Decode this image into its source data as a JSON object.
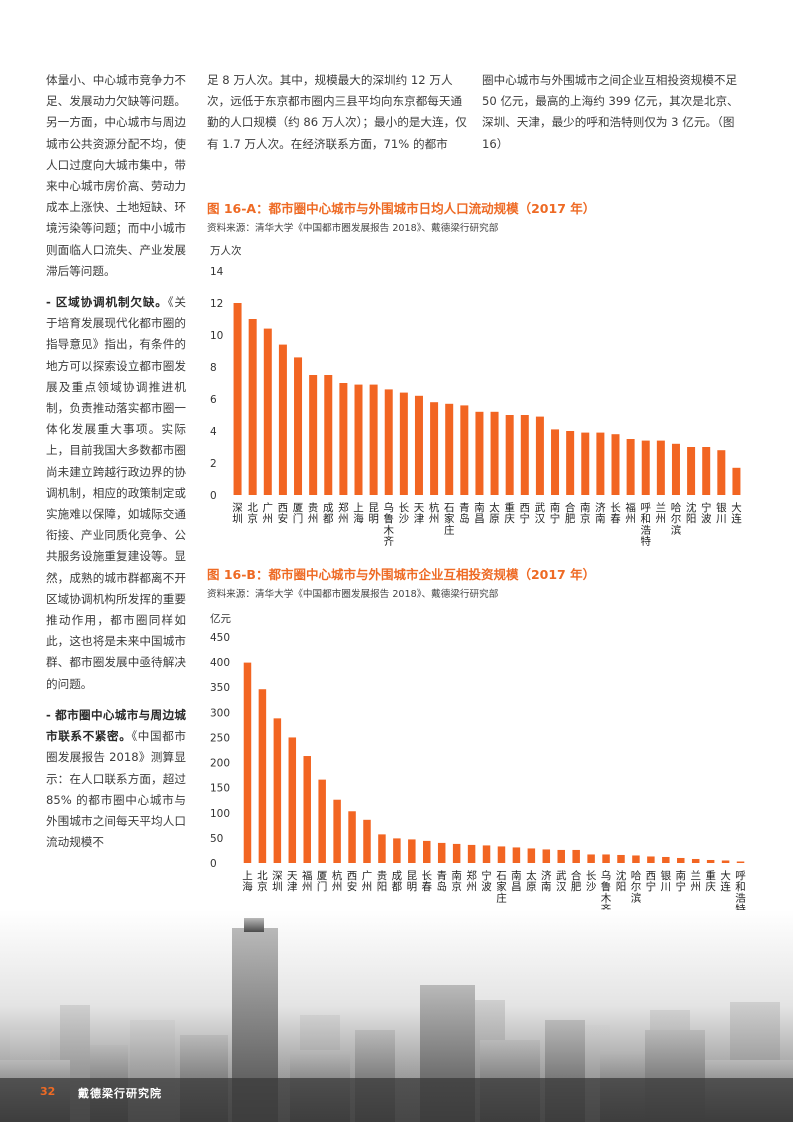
{
  "left_column": {
    "para1": "体量小、中心城市竞争力不足、发展动力欠缺等问题。另一方面，中心城市与周边城市公共资源分配不均，使人口过度向大城市集中，带来中心城市房价高、劳动力成本上涨快、土地短缺、环境污染等问题；而中小城市则面临人口流失、产业发展滞后等问题。",
    "para2_heading": "- 区域协调机制欠缺。",
    "para2_body": "《关于培育发展现代化都市圈的指导意见》指出，有条件的地方可以探索设立都市圈发展及重点领域协调推进机制，负责推动落实都市圈一体化发展重大事项。实际上，目前我国大多数都市圈尚未建立跨越行政边界的协调机制，相应的政策制定或实施难以保障，如城际交通衔接、产业同质化竞争、公共服务设施重复建设等。显然，成熟的城市群都离不开区域协调机构所发挥的重要推动作用，都市圈同样如此，这也将是未来中国城市群、都市圈发展中亟待解决的问题。",
    "para3_heading": "- 都市圈中心城市与周边城市联系不紧密。",
    "para3_body": "《中国都市圈发展报告 2018》测算显示：在人口联系方面，超过 85% 的都市圈中心城市与外围城市之间每天平均人口流动规模不"
  },
  "middle_column": {
    "text": "足 8 万人次。其中，规模最大的深圳约 12 万人次，远低于东京都市圈内三县平均向东京都每天通勤的人口规模（约 86 万人次）；最小的是大连，仅有 1.7 万人次。在经济联系方面，71% 的都市"
  },
  "right_column": {
    "text": "圈中心城市与外围城市之间企业互相投资规模不足 50 亿元，最高的上海约 399 亿元，其次是北京、深圳、天津，最少的呼和浩特则仅为 3 亿元。（图 16）"
  },
  "figure_a": {
    "title": "图 16-A：都市圈中心城市与外围城市日均人口流动规模（2017 年）",
    "source": "资料来源：清华大学《中国都市圈发展报告 2018》、戴德梁行研究部"
  },
  "figure_b": {
    "title": "图 16-B：都市圈中心城市与外围城市企业互相投资规模（2017 年）",
    "source": "资料来源：清华大学《中国都市圈发展报告 2018》、戴德梁行研究部"
  },
  "colors": {
    "bar": "#f26522",
    "accent": "#ee6a24"
  },
  "chart_data": [
    {
      "type": "bar",
      "title": "",
      "xlabel": "",
      "ylabel": "万人次",
      "ylim": [
        0,
        14
      ],
      "yticks": [
        0,
        2,
        4,
        6,
        8,
        10,
        12,
        14
      ],
      "grid": false,
      "categories": [
        "深圳",
        "北京",
        "广州",
        "西安",
        "厦门",
        "贵州",
        "成都",
        "郑州",
        "上海",
        "昆明",
        "乌鲁木齐",
        "长沙",
        "天津",
        "杭州",
        "石家庄",
        "青岛",
        "南昌",
        "太原",
        "重庆",
        "西宁",
        "武汉",
        "南宁",
        "合肥",
        "南京",
        "济南",
        "长春",
        "福州",
        "呼和浩特",
        "兰州",
        "哈尔滨",
        "沈阳",
        "宁波",
        "银川",
        "大连"
      ],
      "values": [
        12.0,
        11.0,
        10.4,
        9.4,
        8.6,
        7.5,
        7.5,
        7.0,
        6.9,
        6.9,
        6.6,
        6.4,
        6.2,
        5.8,
        5.7,
        5.6,
        5.2,
        5.2,
        5.0,
        5.0,
        4.9,
        4.1,
        4.0,
        3.9,
        3.9,
        3.8,
        3.5,
        3.4,
        3.4,
        3.2,
        3.0,
        3.0,
        2.8,
        1.7
      ]
    },
    {
      "type": "bar",
      "title": "",
      "xlabel": "",
      "ylabel": "亿元",
      "ylim": [
        0,
        450
      ],
      "yticks": [
        0,
        50,
        100,
        150,
        200,
        250,
        300,
        350,
        400,
        450
      ],
      "grid": false,
      "categories": [
        "上海",
        "北京",
        "深圳",
        "天津",
        "福州",
        "厦门",
        "杭州",
        "西安",
        "广州",
        "贵阳",
        "成都",
        "昆明",
        "长春",
        "青岛",
        "南京",
        "郑州",
        "宁波",
        "石家庄",
        "南昌",
        "太原",
        "济南",
        "武汉",
        "合肥",
        "长沙",
        "乌鲁木齐",
        "沈阳",
        "哈尔滨",
        "西宁",
        "银川",
        "南宁",
        "兰州",
        "重庆",
        "大连",
        "呼和浩特"
      ],
      "values": [
        399,
        346,
        288,
        250,
        213,
        166,
        126,
        103,
        86,
        57,
        49,
        47,
        44,
        40,
        38,
        36,
        35,
        33,
        31,
        29,
        27,
        26,
        26,
        17,
        17,
        16,
        15,
        13,
        12,
        10,
        8,
        6,
        5,
        3
      ]
    }
  ],
  "footer": {
    "page_number": "32",
    "organization": "戴德梁行研究院"
  }
}
